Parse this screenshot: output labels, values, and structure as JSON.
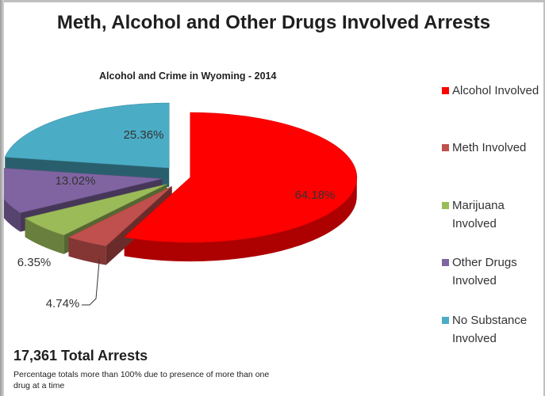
{
  "slide": {
    "title": "Meth, Alcohol and Other Drugs Involved Arrests",
    "total_label": "17,361 Total Arrests",
    "note": "Percentage totals more than 100% due to presence of more than one drug at a time"
  },
  "chart_data": {
    "type": "pie",
    "title": "Alcohol and Crime in Wyoming - 2014",
    "legend_position": "right",
    "slices": [
      {
        "name": "Alcohol Involved",
        "value": 64.18,
        "label": "64.18%",
        "color": "#ff0000"
      },
      {
        "name": "Meth Involved",
        "value": 4.74,
        "label": "4.74%",
        "color": "#c0504d"
      },
      {
        "name": "Marijuana Involved",
        "value": 6.35,
        "label": "6.35%",
        "color": "#9bbb59"
      },
      {
        "name": "Other Drugs Involved",
        "value": 13.02,
        "label": "13.02%",
        "color": "#8064a2"
      },
      {
        "name": "No Substance Involved",
        "value": 25.36,
        "label": "25.36%",
        "color": "#4bacc6"
      }
    ]
  }
}
